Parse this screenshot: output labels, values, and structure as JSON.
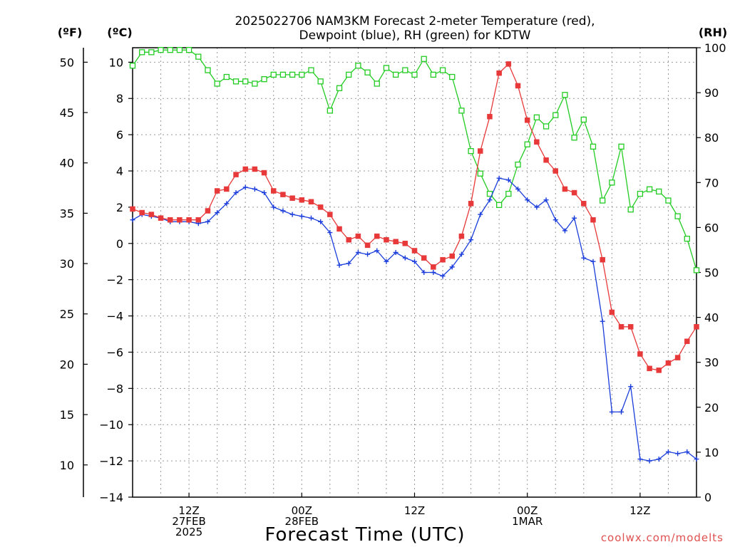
{
  "title": {
    "line1": "2025022706 NAM3KM Forecast 2-meter Temperature (red),",
    "line2": "Dewpoint (blue), RH (green) for KDTW"
  },
  "units": {
    "fahrenheit": "(ºF)",
    "celsius": "(ºC)",
    "rh": "(RH)"
  },
  "xlabel": "Forecast Time (UTC)",
  "credit": "coolwx.com/modelts",
  "colors": {
    "temperature": "#e8393a",
    "dewpoint": "#1a3ddb",
    "rh": "#22cc22",
    "grid": "#999999",
    "credit": "#e05050"
  },
  "chart_data": {
    "type": "line",
    "x_units": "forecast hour from 2025-02-27 06Z",
    "xlim": [
      0,
      60
    ],
    "ylim_celsius": [
      -14,
      10.8
    ],
    "ylim_fahrenheit": [
      6.8,
      51.44
    ],
    "ylim_rh": [
      0,
      100
    ],
    "grid": true,
    "x_ticks": [
      {
        "hour": 6,
        "lines": [
          "12Z",
          "27FEB",
          "2025"
        ]
      },
      {
        "hour": 18,
        "lines": [
          "00Z",
          "28FEB"
        ]
      },
      {
        "hour": 30,
        "lines": [
          "12Z"
        ]
      },
      {
        "hour": 42,
        "lines": [
          "00Z",
          "1MAR"
        ]
      },
      {
        "hour": 54,
        "lines": [
          "12Z"
        ]
      }
    ],
    "y_ticks_celsius": [
      "-14",
      "-12",
      "-10",
      "-8",
      "-6",
      "-4",
      "-2",
      "0",
      "2",
      "4",
      "6",
      "8",
      "10"
    ],
    "y_ticks_fahrenheit": [
      "10",
      "15",
      "20",
      "25",
      "30",
      "35",
      "40",
      "45",
      "50"
    ],
    "y_ticks_rh": [
      "0",
      "10",
      "20",
      "30",
      "40",
      "50",
      "60",
      "70",
      "80",
      "90",
      "100"
    ],
    "x_hours": [
      0,
      1,
      2,
      3,
      4,
      5,
      6,
      7,
      8,
      9,
      10,
      11,
      12,
      13,
      14,
      15,
      16,
      17,
      18,
      19,
      20,
      21,
      22,
      23,
      24,
      25,
      26,
      27,
      28,
      29,
      30,
      31,
      32,
      33,
      34,
      35,
      36,
      37,
      38,
      39,
      40,
      41,
      42,
      43,
      44,
      45,
      46,
      47,
      48,
      49,
      50,
      51,
      52,
      53,
      54,
      55,
      56,
      57,
      58,
      59,
      60
    ],
    "series": [
      {
        "name": "Temperature",
        "units": "°C",
        "axis": "celsius",
        "values": [
          1.9,
          1.7,
          1.6,
          1.4,
          1.3,
          1.3,
          1.3,
          1.3,
          1.8,
          2.9,
          3.0,
          3.8,
          4.1,
          4.1,
          3.9,
          2.9,
          2.7,
          2.5,
          2.4,
          2.3,
          2.0,
          1.6,
          0.8,
          0.2,
          0.4,
          -0.1,
          0.4,
          0.2,
          0.1,
          0.0,
          -0.4,
          -0.8,
          -1.3,
          -0.9,
          -0.7,
          0.4,
          2.2,
          5.1,
          7.0,
          9.4,
          9.9,
          8.7,
          6.8,
          5.6,
          4.6,
          4.0,
          3.0,
          2.8,
          2.2,
          1.3,
          -0.9,
          -3.8,
          -4.6,
          -4.6,
          -6.1,
          -6.9,
          -7.0,
          -6.6,
          -6.3,
          -5.4,
          -4.6
        ]
      },
      {
        "name": "Dewpoint",
        "units": "°C",
        "axis": "celsius",
        "values": [
          1.3,
          1.6,
          1.5,
          1.4,
          1.2,
          1.2,
          1.2,
          1.1,
          1.2,
          1.7,
          2.2,
          2.8,
          3.1,
          3.0,
          2.8,
          2.0,
          1.8,
          1.6,
          1.5,
          1.4,
          1.2,
          0.6,
          -1.2,
          -1.1,
          -0.5,
          -0.6,
          -0.4,
          -1.0,
          -0.5,
          -0.8,
          -1.0,
          -1.6,
          -1.6,
          -1.8,
          -1.3,
          -0.6,
          0.2,
          1.6,
          2.4,
          3.6,
          3.5,
          3.0,
          2.4,
          2.0,
          2.4,
          1.3,
          0.7,
          1.4,
          -0.8,
          -1.0,
          -4.3,
          -9.3,
          -9.3,
          -7.9,
          -11.9,
          -12.0,
          -11.9,
          -11.5,
          -11.6,
          -11.5,
          -11.9
        ]
      },
      {
        "name": "RH",
        "units": "%",
        "axis": "rh",
        "values": [
          96,
          99,
          99,
          99.5,
          99.5,
          99.5,
          99.5,
          98,
          95,
          92,
          93.5,
          92.5,
          92.5,
          92,
          93,
          94,
          94,
          94,
          94,
          95,
          92.5,
          86,
          91,
          94,
          96,
          94.5,
          92,
          95.5,
          94,
          95,
          94,
          97.5,
          94,
          95,
          93.5,
          86,
          77,
          72,
          67.5,
          65,
          67.5,
          74,
          78.5,
          84.5,
          82.5,
          85,
          89.5,
          80,
          84,
          78,
          66,
          70,
          78,
          64,
          67.5,
          68.5,
          68,
          66,
          62.5,
          57.5,
          50.5
        ]
      }
    ]
  }
}
